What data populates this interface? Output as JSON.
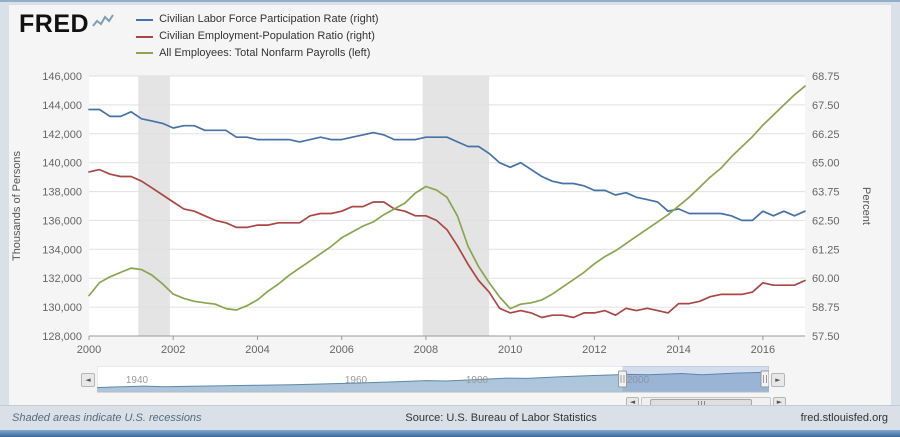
{
  "header": {
    "logo": "FRED",
    "legend": [
      {
        "label": "Civilian Labor Force Participation Rate (right)"
      },
      {
        "label": "Civilian Employment-Population Ratio (right)"
      },
      {
        "label": "All Employees: Total Nonfarm Payrolls (left)"
      }
    ]
  },
  "icons": {
    "left_arrow": "◄",
    "right_arrow": "►"
  },
  "chart_data": {
    "type": "line",
    "x_min": 2000,
    "x_max": 2017,
    "x_ticks": [
      2000,
      2002,
      2004,
      2006,
      2008,
      2010,
      2012,
      2014,
      2016
    ],
    "left_axis": {
      "title": "Thousands of Persons",
      "min": 128000,
      "max": 146000,
      "ticks": [
        128000,
        130000,
        132000,
        134000,
        136000,
        138000,
        140000,
        142000,
        144000,
        146000
      ]
    },
    "right_axis": {
      "title": "Percent",
      "min": 57.5,
      "max": 68.75,
      "ticks": [
        57.5,
        58.75,
        60.0,
        61.25,
        62.5,
        63.75,
        65.0,
        66.25,
        67.5,
        68.75
      ]
    },
    "recessions": [
      [
        2001.17,
        2001.92
      ],
      [
        2007.92,
        2009.5
      ]
    ],
    "series": [
      {
        "id": "labor-force-participation-rate",
        "name": "Civilian Labor Force Participation Rate",
        "axis": "right",
        "color": "#4572a7",
        "x_start": 2000,
        "x_step": 0.25,
        "values": [
          67.3,
          67.3,
          67.0,
          67.0,
          67.2,
          66.9,
          66.8,
          66.7,
          66.5,
          66.6,
          66.6,
          66.4,
          66.4,
          66.4,
          66.1,
          66.1,
          66.0,
          66.0,
          66.0,
          66.0,
          65.9,
          66.0,
          66.1,
          66.0,
          66.0,
          66.1,
          66.2,
          66.3,
          66.2,
          66.0,
          66.0,
          66.0,
          66.1,
          66.1,
          66.1,
          65.9,
          65.7,
          65.7,
          65.4,
          65.0,
          64.8,
          65.0,
          64.7,
          64.4,
          64.2,
          64.1,
          64.1,
          64.0,
          63.8,
          63.8,
          63.6,
          63.7,
          63.5,
          63.4,
          63.3,
          62.9,
          63.0,
          62.8,
          62.8,
          62.8,
          62.8,
          62.7,
          62.5,
          62.5,
          62.9,
          62.7,
          62.9,
          62.7,
          62.9
        ]
      },
      {
        "id": "employment-population-ratio",
        "name": "Civilian Employment-Population Ratio",
        "axis": "right",
        "color": "#aa4643",
        "x_start": 2000,
        "x_step": 0.25,
        "values": [
          64.6,
          64.7,
          64.5,
          64.4,
          64.4,
          64.2,
          63.9,
          63.6,
          63.3,
          63.0,
          62.9,
          62.7,
          62.5,
          62.4,
          62.2,
          62.2,
          62.3,
          62.3,
          62.4,
          62.4,
          62.4,
          62.7,
          62.8,
          62.8,
          62.9,
          63.1,
          63.1,
          63.3,
          63.3,
          63.0,
          62.9,
          62.7,
          62.7,
          62.5,
          62.1,
          61.4,
          60.6,
          59.9,
          59.4,
          58.7,
          58.5,
          58.6,
          58.5,
          58.3,
          58.4,
          58.4,
          58.3,
          58.5,
          58.5,
          58.6,
          58.4,
          58.7,
          58.6,
          58.7,
          58.6,
          58.5,
          58.9,
          58.9,
          59.0,
          59.2,
          59.3,
          59.3,
          59.3,
          59.4,
          59.8,
          59.7,
          59.7,
          59.7,
          59.9
        ]
      },
      {
        "id": "total-nonfarm-payrolls",
        "name": "All Employees: Total Nonfarm Payrolls",
        "axis": "left",
        "color": "#89a54e",
        "x_start": 2000,
        "x_step": 0.25,
        "values": [
          130800,
          131700,
          132100,
          132400,
          132700,
          132600,
          132200,
          131600,
          130900,
          130600,
          130400,
          130300,
          130200,
          129900,
          129800,
          130100,
          130500,
          131100,
          131600,
          132200,
          132700,
          133200,
          133700,
          134200,
          134800,
          135200,
          135600,
          135900,
          136400,
          136800,
          137200,
          137900,
          138350,
          138100,
          137600,
          136300,
          134200,
          132800,
          131700,
          130700,
          129900,
          130200,
          130300,
          130500,
          130900,
          131400,
          131900,
          132400,
          133000,
          133500,
          133900,
          134400,
          134900,
          135400,
          135900,
          136400,
          137000,
          137600,
          138300,
          139000,
          139600,
          140400,
          141100,
          141800,
          142600,
          143300,
          144000,
          144700,
          145300
        ]
      }
    ]
  },
  "navigator": {
    "ticks": [
      {
        "label": "1940",
        "pos": 0.06
      },
      {
        "label": "1960",
        "pos": 0.385
      },
      {
        "label": "1980",
        "pos": 0.565
      },
      {
        "label": "2000",
        "pos": 0.805
      }
    ],
    "selected_from": 0.782,
    "points": [
      [
        0,
        0.2
      ],
      [
        0.03,
        0.23
      ],
      [
        0.07,
        0.27
      ],
      [
        0.1,
        0.24
      ],
      [
        0.14,
        0.26
      ],
      [
        0.19,
        0.28
      ],
      [
        0.24,
        0.31
      ],
      [
        0.29,
        0.33
      ],
      [
        0.34,
        0.37
      ],
      [
        0.39,
        0.41
      ],
      [
        0.44,
        0.46
      ],
      [
        0.49,
        0.52
      ],
      [
        0.52,
        0.5
      ],
      [
        0.56,
        0.56
      ],
      [
        0.61,
        0.63
      ],
      [
        0.64,
        0.62
      ],
      [
        0.69,
        0.69
      ],
      [
        0.74,
        0.75
      ],
      [
        0.79,
        0.8
      ],
      [
        0.82,
        0.78
      ],
      [
        0.87,
        0.84
      ],
      [
        0.9,
        0.78
      ],
      [
        0.95,
        0.86
      ],
      [
        1,
        0.9
      ]
    ]
  },
  "footer": {
    "left": "Shaded areas indicate U.S. recessions",
    "center": "Source: U.S. Bureau of Labor Statistics",
    "right": "fred.stlouisfed.org"
  }
}
